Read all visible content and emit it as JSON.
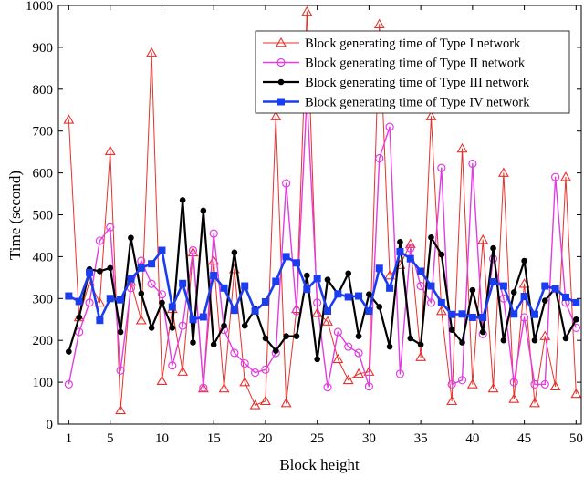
{
  "chart_data": {
    "type": "line",
    "title": "",
    "xlabel": "Block height",
    "ylabel": "Time (second)",
    "xlim": [
      0,
      50.5
    ],
    "ylim": [
      0,
      1000
    ],
    "xticks": [
      1,
      5,
      10,
      15,
      20,
      25,
      30,
      35,
      40,
      45,
      50
    ],
    "yticks": [
      0,
      100,
      200,
      300,
      400,
      500,
      600,
      700,
      800,
      900,
      1000
    ],
    "grid": false,
    "legend_position": "top-right",
    "x": [
      1,
      2,
      3,
      4,
      5,
      6,
      7,
      8,
      9,
      10,
      11,
      12,
      13,
      14,
      15,
      16,
      17,
      18,
      19,
      20,
      21,
      22,
      23,
      24,
      25,
      26,
      27,
      28,
      29,
      30,
      31,
      32,
      33,
      34,
      35,
      36,
      37,
      38,
      39,
      40,
      41,
      42,
      43,
      44,
      45,
      46,
      47,
      48,
      49,
      50
    ],
    "series": [
      {
        "name": "Block generating time of Type I network",
        "color": "#e8302b",
        "marker": "triangle",
        "values": [
          727,
          255,
          340,
          290,
          652,
          33,
          340,
          248,
          887,
          103,
          275,
          125,
          410,
          85,
          390,
          85,
          370,
          100,
          45,
          55,
          735,
          50,
          275,
          985,
          265,
          245,
          155,
          105,
          120,
          125,
          955,
          355,
          380,
          430,
          160,
          735,
          270,
          55,
          658,
          95,
          440,
          85,
          600,
          60,
          335,
          50,
          210,
          90,
          590,
          72
        ]
      },
      {
        "name": "Block generating time of Type II network",
        "color": "#e23de2",
        "marker": "circle",
        "values": [
          95,
          220,
          290,
          438,
          470,
          128,
          325,
          390,
          335,
          310,
          140,
          235,
          415,
          87,
          455,
          225,
          170,
          145,
          123,
          130,
          170,
          575,
          270,
          785,
          290,
          88,
          220,
          185,
          170,
          90,
          635,
          710,
          120,
          420,
          330,
          290,
          612,
          95,
          105,
          622,
          215,
          395,
          300,
          100,
          255,
          95,
          95,
          590,
          290,
          230
        ]
      },
      {
        "name": "Block generating time of Type III network",
        "color": "#000000",
        "marker": "circle",
        "values": [
          173,
          255,
          370,
          365,
          373,
          220,
          445,
          312,
          230,
          290,
          230,
          535,
          195,
          510,
          190,
          235,
          410,
          235,
          275,
          205,
          175,
          210,
          210,
          355,
          155,
          345,
          310,
          360,
          210,
          310,
          280,
          185,
          435,
          205,
          190,
          446,
          405,
          225,
          195,
          320,
          220,
          420,
          200,
          315,
          390,
          200,
          295,
          325,
          205,
          250
        ]
      },
      {
        "name": "Block generating time of Type IV network",
        "color": "#1b3df0",
        "marker": "square",
        "values": [
          306,
          293,
          362,
          248,
          300,
          297,
          347,
          373,
          383,
          415,
          280,
          336,
          250,
          256,
          355,
          325,
          272,
          330,
          270,
          292,
          341,
          400,
          385,
          322,
          348,
          270,
          311,
          304,
          306,
          270,
          372,
          325,
          412,
          395,
          365,
          330,
          290,
          262,
          263,
          255,
          255,
          340,
          330,
          263,
          305,
          262,
          330,
          323,
          303,
          290
        ]
      }
    ]
  }
}
